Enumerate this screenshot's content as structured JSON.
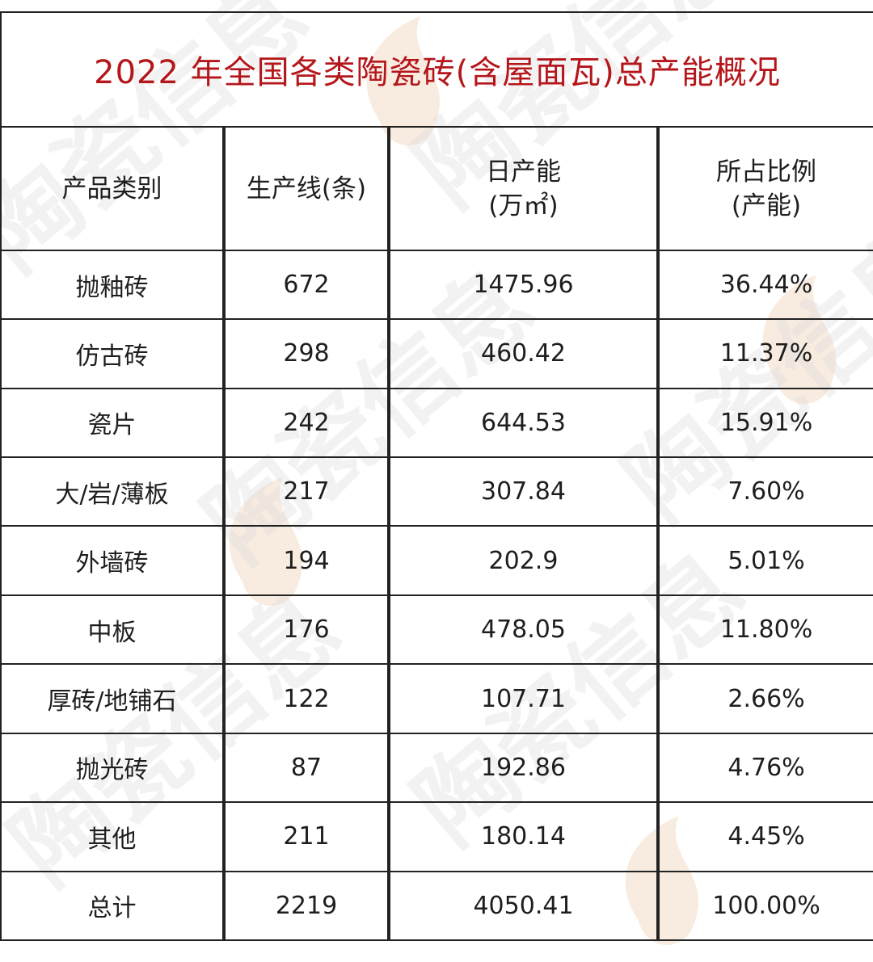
{
  "title": "2022 年全国各类陶瓷砖(含屋面瓦)总产能概况",
  "watermark_text": "陶瓷信息",
  "columns": {
    "category": "产品类别",
    "lines": "生产线(条)",
    "capacity_1": "日产能",
    "capacity_2": "(万㎡)",
    "share_1": "所占比例",
    "share_2": "(产能)"
  },
  "rows": [
    {
      "category": "抛釉砖",
      "lines": "672",
      "capacity": "1475.96",
      "share": "36.44%"
    },
    {
      "category": "仿古砖",
      "lines": "298",
      "capacity": "460.42",
      "share": "11.37%"
    },
    {
      "category": "瓷片",
      "lines": "242",
      "capacity": "644.53",
      "share": "15.91%"
    },
    {
      "category": "大/岩/薄板",
      "lines": "217",
      "capacity": "307.84",
      "share": "7.60%"
    },
    {
      "category": "外墙砖",
      "lines": "194",
      "capacity": "202.9",
      "share": "5.01%"
    },
    {
      "category": "中板",
      "lines": "176",
      "capacity": "478.05",
      "share": "11.80%"
    },
    {
      "category": "厚砖/地铺石",
      "lines": "122",
      "capacity": "107.71",
      "share": "2.66%"
    },
    {
      "category": "抛光砖",
      "lines": "87",
      "capacity": "192.86",
      "share": "4.76%"
    },
    {
      "category": "其他",
      "lines": "211",
      "capacity": "180.14",
      "share": "4.45%"
    }
  ],
  "total": {
    "category": "总计",
    "lines": "2219",
    "capacity": "4050.41",
    "share": "100.00%"
  },
  "colors": {
    "title": "#b5161b",
    "border": "#222222",
    "watermark": "#d9d9d9",
    "watermark_flame": "#f6d6b8"
  }
}
